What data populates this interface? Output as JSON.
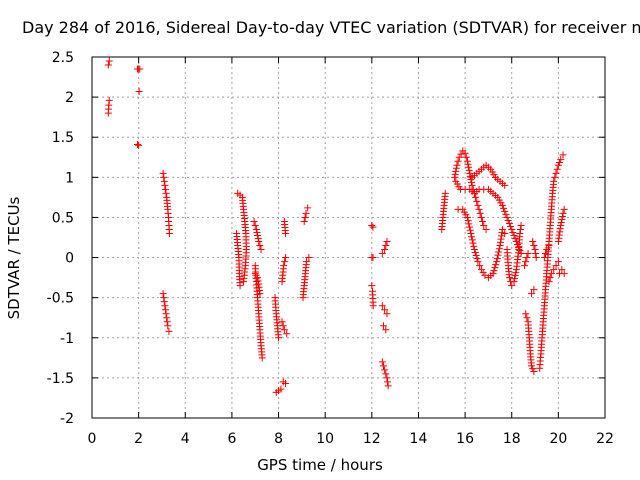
{
  "chart_data": {
    "type": "scatter",
    "title": "Day 284 of 2016, Sidereal Day-to-day VTEC variation (SDTVAR) for receiver n",
    "xlabel": "GPS time / hours",
    "ylabel": "SDTVAR / TECUs",
    "xlim": [
      0,
      22
    ],
    "ylim": [
      -2,
      2.5
    ],
    "xticks": [
      "0",
      "2",
      "4",
      "6",
      "8",
      "10",
      "12",
      "14",
      "16",
      "18",
      "20",
      "22"
    ],
    "yticks": [
      "2.5",
      "2",
      "1.5",
      "1",
      "0.5",
      "0",
      "-0.5",
      "-1",
      "-1.5",
      "-2"
    ],
    "grid": true,
    "marker": "+",
    "color": "#ff0000",
    "series": [
      {
        "segments": [
          [
            [
              0.7,
              1.8
            ],
            [
              0.72,
              1.9
            ],
            [
              0.74,
              1.96
            ]
          ],
          [
            [
              0.7,
              2.4
            ],
            [
              0.74,
              2.45
            ]
          ],
          [
            [
              1.95,
              2.35
            ],
            [
              2.0,
              2.35
            ],
            [
              2.05,
              2.35
            ]
          ],
          [
            [
              2.02,
              2.07
            ]
          ],
          [
            [
              1.95,
              1.41
            ],
            [
              2.0,
              1.4
            ]
          ],
          [
            [
              3.05,
              1.05
            ],
            [
              3.1,
              0.95
            ],
            [
              3.15,
              0.85
            ],
            [
              3.2,
              0.75
            ],
            [
              3.25,
              0.6
            ],
            [
              3.28,
              0.5
            ],
            [
              3.3,
              0.4
            ],
            [
              3.32,
              0.3
            ]
          ],
          [
            [
              3.05,
              -0.45
            ],
            [
              3.1,
              -0.55
            ],
            [
              3.15,
              -0.65
            ],
            [
              3.2,
              -0.75
            ],
            [
              3.25,
              -0.85
            ],
            [
              3.3,
              -0.92
            ]
          ],
          [
            [
              6.2,
              0.3
            ],
            [
              6.25,
              0.15
            ],
            [
              6.3,
              0.0
            ],
            [
              6.32,
              -0.2
            ],
            [
              6.35,
              -0.35
            ]
          ],
          [
            [
              6.25,
              0.8
            ],
            [
              6.35,
              0.78
            ],
            [
              6.45,
              0.75
            ],
            [
              6.5,
              0.6
            ],
            [
              6.55,
              0.45
            ],
            [
              6.6,
              0.3
            ],
            [
              6.62,
              0.1
            ],
            [
              6.58,
              -0.1
            ],
            [
              6.5,
              -0.3
            ]
          ],
          [
            [
              6.95,
              0.45
            ],
            [
              7.05,
              0.35
            ],
            [
              7.15,
              0.2
            ],
            [
              7.25,
              0.1
            ]
          ],
          [
            [
              7.0,
              -0.1
            ],
            [
              7.05,
              -0.3
            ],
            [
              7.1,
              -0.5
            ],
            [
              7.15,
              -0.7
            ],
            [
              7.2,
              -0.9
            ],
            [
              7.25,
              -1.1
            ],
            [
              7.3,
              -1.25
            ]
          ],
          [
            [
              7.0,
              -0.2
            ],
            [
              7.1,
              -0.25
            ],
            [
              7.2,
              -0.45
            ]
          ],
          [
            [
              7.85,
              -0.5
            ],
            [
              7.9,
              -0.7
            ],
            [
              7.95,
              -0.85
            ],
            [
              8.0,
              -1.0
            ]
          ],
          [
            [
              7.9,
              -1.68
            ],
            [
              8.0,
              -1.66
            ],
            [
              8.1,
              -1.64
            ]
          ],
          [
            [
              8.15,
              -0.8
            ],
            [
              8.25,
              -0.9
            ],
            [
              8.35,
              -0.95
            ]
          ],
          [
            [
              8.15,
              -0.3
            ],
            [
              8.22,
              -0.1
            ],
            [
              8.3,
              0.0
            ]
          ],
          [
            [
              8.2,
              -1.55
            ],
            [
              8.3,
              -1.57
            ]
          ],
          [
            [
              8.25,
              0.45
            ],
            [
              8.3,
              0.3
            ]
          ],
          [
            [
              9.05,
              -0.5
            ],
            [
              9.1,
              -0.35
            ],
            [
              9.15,
              -0.2
            ],
            [
              9.2,
              -0.05
            ],
            [
              9.3,
              0.0
            ]
          ],
          [
            [
              9.1,
              0.45
            ],
            [
              9.18,
              0.55
            ],
            [
              9.25,
              0.62
            ]
          ],
          [
            [
              12.0,
              0.4
            ],
            [
              12.05,
              0.38
            ]
          ],
          [
            [
              12.0,
              0.0
            ],
            [
              12.05,
              0.0
            ]
          ],
          [
            [
              12.0,
              -0.35
            ],
            [
              12.03,
              -0.42
            ],
            [
              12.06,
              -0.6
            ]
          ],
          [
            [
              12.45,
              0.05
            ],
            [
              12.55,
              0.1
            ],
            [
              12.65,
              0.2
            ]
          ],
          [
            [
              12.45,
              -0.6
            ],
            [
              12.55,
              -0.65
            ],
            [
              12.65,
              -0.7
            ]
          ],
          [
            [
              12.5,
              -0.85
            ],
            [
              12.6,
              -0.9
            ]
          ],
          [
            [
              12.45,
              -1.3
            ],
            [
              12.55,
              -1.4
            ],
            [
              12.65,
              -1.5
            ],
            [
              12.7,
              -1.6
            ]
          ],
          [
            [
              15.0,
              0.35
            ],
            [
              15.05,
              0.5
            ],
            [
              15.1,
              0.65
            ],
            [
              15.15,
              0.8
            ]
          ],
          [
            [
              15.55,
              1.0
            ],
            [
              15.65,
              1.15
            ],
            [
              15.75,
              1.25
            ],
            [
              15.9,
              1.33
            ],
            [
              16.0,
              1.3
            ],
            [
              16.1,
              1.2
            ],
            [
              16.2,
              1.05
            ],
            [
              16.3,
              0.9
            ],
            [
              16.4,
              0.8
            ],
            [
              16.5,
              0.7
            ],
            [
              16.6,
              0.6
            ],
            [
              16.7,
              0.5
            ],
            [
              16.8,
              0.4
            ],
            [
              16.9,
              0.35
            ]
          ],
          [
            [
              15.6,
              0.95
            ],
            [
              15.8,
              0.85
            ],
            [
              16.0,
              0.85
            ],
            [
              16.2,
              0.85
            ],
            [
              16.4,
              0.8
            ],
            [
              16.6,
              0.85
            ],
            [
              16.8,
              0.85
            ],
            [
              17.0,
              0.85
            ],
            [
              17.2,
              0.8
            ],
            [
              17.4,
              0.75
            ],
            [
              17.6,
              0.65
            ],
            [
              17.8,
              0.5
            ],
            [
              18.0,
              0.35
            ],
            [
              18.2,
              0.2
            ],
            [
              18.4,
              0.05
            ]
          ],
          [
            [
              15.7,
              0.6
            ],
            [
              15.9,
              0.6
            ],
            [
              16.1,
              0.5
            ],
            [
              16.25,
              0.3
            ],
            [
              16.4,
              0.1
            ],
            [
              16.55,
              -0.05
            ],
            [
              16.7,
              -0.15
            ],
            [
              16.85,
              -0.22
            ],
            [
              17.0,
              -0.25
            ],
            [
              17.2,
              -0.2
            ],
            [
              17.35,
              -0.05
            ],
            [
              17.5,
              0.15
            ],
            [
              17.6,
              0.35
            ],
            [
              17.7,
              0.3
            ]
          ],
          [
            [
              16.3,
              1.0
            ],
            [
              16.5,
              1.05
            ],
            [
              16.7,
              1.1
            ],
            [
              16.9,
              1.15
            ],
            [
              17.1,
              1.1
            ],
            [
              17.3,
              1.0
            ],
            [
              17.5,
              0.95
            ],
            [
              17.7,
              0.9
            ]
          ],
          [
            [
              17.8,
              0.1
            ],
            [
              17.85,
              -0.1
            ],
            [
              17.9,
              -0.25
            ],
            [
              18.0,
              -0.35
            ],
            [
              18.1,
              -0.3
            ],
            [
              18.2,
              -0.15
            ],
            [
              18.3,
              0.1
            ],
            [
              18.35,
              0.3
            ],
            [
              18.4,
              0.4
            ]
          ],
          [
            [
              18.55,
              -0.1
            ],
            [
              18.65,
              0.0
            ],
            [
              18.7,
              0.05
            ]
          ],
          [
            [
              18.6,
              -0.7
            ],
            [
              18.7,
              -0.8
            ],
            [
              18.75,
              -1.0
            ],
            [
              18.8,
              -1.2
            ],
            [
              18.85,
              -1.35
            ],
            [
              18.95,
              -1.42
            ]
          ],
          [
            [
              18.9,
              0.2
            ],
            [
              19.0,
              0.1
            ],
            [
              19.05,
              0.0
            ]
          ],
          [
            [
              18.85,
              -0.45
            ],
            [
              18.95,
              -0.4
            ]
          ],
          [
            [
              19.2,
              -1.38
            ],
            [
              19.25,
              -1.2
            ],
            [
              19.3,
              -1.0
            ],
            [
              19.35,
              -0.8
            ],
            [
              19.4,
              -0.6
            ],
            [
              19.45,
              -0.4
            ],
            [
              19.5,
              -0.2
            ],
            [
              19.55,
              0.0
            ],
            [
              19.6,
              0.2
            ],
            [
              19.65,
              0.4
            ],
            [
              19.7,
              0.6
            ],
            [
              19.75,
              0.8
            ],
            [
              19.8,
              0.95
            ],
            [
              19.9,
              1.05
            ],
            [
              20.0,
              1.15
            ],
            [
              20.1,
              1.22
            ],
            [
              20.2,
              1.28
            ]
          ],
          [
            [
              19.6,
              -0.3
            ],
            [
              19.7,
              -0.2
            ],
            [
              19.8,
              -0.15
            ],
            [
              19.9,
              -0.1
            ],
            [
              20.0,
              -0.05
            ]
          ],
          [
            [
              20.05,
              -0.2
            ],
            [
              20.15,
              -0.15
            ],
            [
              20.25,
              -0.2
            ]
          ],
          [
            [
              20.0,
              0.2
            ],
            [
              20.1,
              0.4
            ],
            [
              20.2,
              0.55
            ],
            [
              20.25,
              0.6
            ]
          ],
          [
            [
              19.4,
              0.0
            ],
            [
              19.5,
              0.1
            ],
            [
              19.6,
              0.15
            ]
          ]
        ]
      }
    ]
  }
}
